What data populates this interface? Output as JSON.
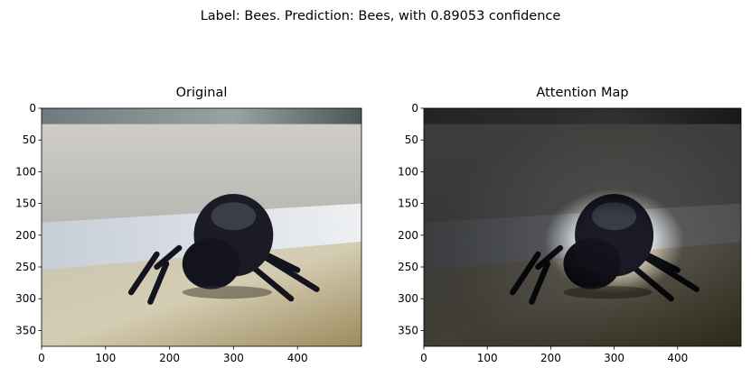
{
  "suptitle": "Label: Bees. Prediction: Bees, with 0.89053 confidence",
  "chart_data": [
    {
      "type": "image",
      "title": "Original",
      "xlim": [
        0,
        500
      ],
      "ylim": [
        375,
        0
      ],
      "xticks": [
        0,
        100,
        200,
        300,
        400
      ],
      "yticks": [
        0,
        50,
        100,
        150,
        200,
        250,
        300,
        350
      ]
    },
    {
      "type": "image",
      "title": "Attention Map",
      "attention": true,
      "xlim": [
        0,
        500
      ],
      "ylim": [
        375,
        0
      ],
      "xticks": [
        0,
        100,
        200,
        300,
        400
      ],
      "yticks": [
        0,
        50,
        100,
        150,
        200,
        250,
        300,
        350
      ]
    }
  ]
}
